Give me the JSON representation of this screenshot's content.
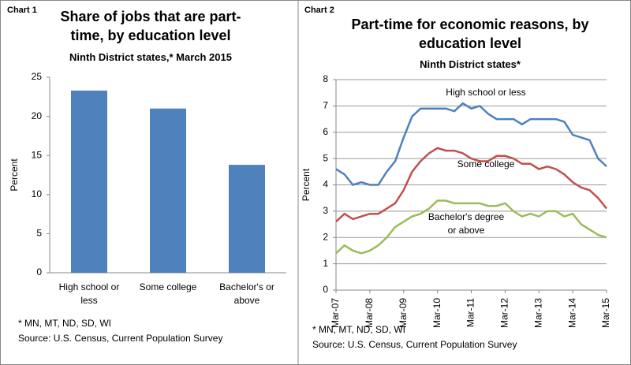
{
  "chart_data": [
    {
      "type": "bar",
      "label": "Chart 1",
      "title": "Share of jobs that are part-time, by education level",
      "subtitle": "Ninth District states,* March 2015",
      "categories": [
        "High school or less",
        "Some college",
        "Bachelor's or above"
      ],
      "values": [
        23.3,
        21.0,
        13.8
      ],
      "color": "#4f81bd",
      "ylim": [
        0,
        25
      ],
      "yticks": [
        0,
        5,
        10,
        15,
        20,
        25
      ],
      "y_label": "Percent",
      "grid": false,
      "footnote": "* MN, MT, ND, SD, WI",
      "source": "Source: U.S. Census, Current Population Survey"
    },
    {
      "type": "line",
      "label": "Chart 2",
      "title": "Part-time for economic reasons, by education level",
      "subtitle": "Ninth District states*",
      "categories": [
        "Mar-07",
        null,
        null,
        null,
        "Mar-08",
        null,
        null,
        null,
        "Mar-09",
        null,
        null,
        null,
        "Mar-10",
        null,
        null,
        null,
        "Mar-11",
        null,
        null,
        null,
        "Mar-12",
        null,
        null,
        null,
        "Mar-13",
        null,
        null,
        null,
        "Mar-14",
        null,
        null,
        null,
        "Mar-15"
      ],
      "series": [
        {
          "name": "High school or less",
          "color": "#4f81bd",
          "values": [
            4.6,
            4.4,
            4.0,
            4.1,
            4.0,
            4.0,
            4.5,
            4.9,
            5.8,
            6.6,
            6.9,
            6.9,
            6.9,
            6.9,
            6.8,
            7.1,
            6.9,
            7.0,
            6.7,
            6.5,
            6.5,
            6.5,
            6.3,
            6.5,
            6.5,
            6.5,
            6.5,
            6.4,
            5.9,
            5.8,
            5.7,
            5.0,
            4.7
          ]
        },
        {
          "name": "Some college",
          "color": "#c0504d",
          "values": [
            2.6,
            2.9,
            2.7,
            2.8,
            2.9,
            2.9,
            3.1,
            3.3,
            3.8,
            4.5,
            4.9,
            5.2,
            5.4,
            5.3,
            5.3,
            5.2,
            5.0,
            4.9,
            4.9,
            5.1,
            5.1,
            5.0,
            4.8,
            4.8,
            4.6,
            4.7,
            4.6,
            4.4,
            4.1,
            3.9,
            3.8,
            3.5,
            3.1
          ]
        },
        {
          "name": "Bachelor's degree or above",
          "color": "#9bbb59",
          "values": [
            1.4,
            1.7,
            1.5,
            1.4,
            1.5,
            1.7,
            2.0,
            2.4,
            2.6,
            2.8,
            2.9,
            3.1,
            3.4,
            3.4,
            3.3,
            3.3,
            3.3,
            3.3,
            3.2,
            3.2,
            3.3,
            3.0,
            2.8,
            2.9,
            2.8,
            3.0,
            3.0,
            2.8,
            2.9,
            2.5,
            2.3,
            2.1,
            2.0
          ]
        }
      ],
      "ylim": [
        0,
        8
      ],
      "yticks": [
        0,
        1,
        2,
        3,
        4,
        5,
        6,
        7,
        8
      ],
      "y_label": "Percent",
      "grid": true,
      "footnote": "* MN, MT, ND, SD, WI",
      "source": "Source: U.S. Census, Current Population Survey"
    }
  ]
}
